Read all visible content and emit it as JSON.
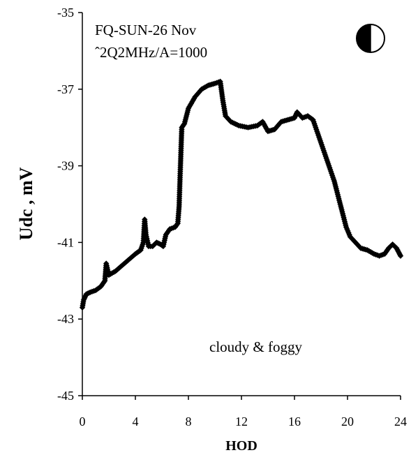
{
  "chart_data": {
    "type": "scatter",
    "annotations": [
      "FQ-SUN-26 Nov",
      "ˆ2Q2MHz/A=1000",
      "cloudy & foggy"
    ],
    "xlabel": "HOD",
    "ylabel": "Udc , mV",
    "xlim": [
      0,
      24
    ],
    "ylim": [
      -45,
      -35
    ],
    "xticks": [
      0,
      4,
      8,
      12,
      16,
      20,
      24
    ],
    "yticks": [
      -35,
      -37,
      -39,
      -41,
      -43,
      -45
    ],
    "grid": false,
    "legend": "none",
    "moon_phase_icon": "half-moon-icon",
    "marker": "diamond",
    "marker_color": "#000000",
    "series": [
      {
        "points": [
          [
            0.0,
            -42.7
          ],
          [
            0.1,
            -42.5
          ],
          [
            0.3,
            -42.35
          ],
          [
            0.6,
            -42.3
          ],
          [
            1.0,
            -42.25
          ],
          [
            1.4,
            -42.15
          ],
          [
            1.7,
            -42.0
          ],
          [
            1.8,
            -41.55
          ],
          [
            1.9,
            -41.7
          ],
          [
            2.0,
            -41.85
          ],
          [
            2.5,
            -41.75
          ],
          [
            3.0,
            -41.6
          ],
          [
            3.5,
            -41.45
          ],
          [
            4.0,
            -41.3
          ],
          [
            4.4,
            -41.2
          ],
          [
            4.6,
            -41.0
          ],
          [
            4.7,
            -40.4
          ],
          [
            4.8,
            -40.8
          ],
          [
            5.0,
            -41.1
          ],
          [
            5.3,
            -41.1
          ],
          [
            5.6,
            -41.0
          ],
          [
            5.9,
            -41.05
          ],
          [
            6.1,
            -41.1
          ],
          [
            6.3,
            -40.8
          ],
          [
            6.6,
            -40.65
          ],
          [
            7.0,
            -40.6
          ],
          [
            7.2,
            -40.5
          ],
          [
            7.3,
            -40.05
          ],
          [
            7.35,
            -39.5
          ],
          [
            7.4,
            -39.0
          ],
          [
            7.45,
            -38.5
          ],
          [
            7.5,
            -38.0
          ],
          [
            7.7,
            -37.9
          ],
          [
            8.0,
            -37.5
          ],
          [
            8.5,
            -37.2
          ],
          [
            9.0,
            -37.0
          ],
          [
            9.5,
            -36.9
          ],
          [
            10.0,
            -36.85
          ],
          [
            10.4,
            -36.8
          ],
          [
            10.6,
            -37.3
          ],
          [
            10.8,
            -37.7
          ],
          [
            11.2,
            -37.85
          ],
          [
            11.8,
            -37.95
          ],
          [
            12.5,
            -38.0
          ],
          [
            13.2,
            -37.95
          ],
          [
            13.6,
            -37.85
          ],
          [
            14.0,
            -38.1
          ],
          [
            14.5,
            -38.05
          ],
          [
            15.0,
            -37.85
          ],
          [
            15.5,
            -37.8
          ],
          [
            16.0,
            -37.75
          ],
          [
            16.2,
            -37.6
          ],
          [
            16.6,
            -37.75
          ],
          [
            17.0,
            -37.7
          ],
          [
            17.4,
            -37.8
          ],
          [
            17.8,
            -38.2
          ],
          [
            18.2,
            -38.6
          ],
          [
            18.6,
            -39.0
          ],
          [
            19.0,
            -39.4
          ],
          [
            19.3,
            -39.8
          ],
          [
            19.6,
            -40.2
          ],
          [
            19.9,
            -40.6
          ],
          [
            20.2,
            -40.85
          ],
          [
            20.6,
            -41.0
          ],
          [
            21.0,
            -41.15
          ],
          [
            21.5,
            -41.2
          ],
          [
            22.0,
            -41.3
          ],
          [
            22.4,
            -41.35
          ],
          [
            22.8,
            -41.3
          ],
          [
            23.1,
            -41.15
          ],
          [
            23.4,
            -41.05
          ],
          [
            23.7,
            -41.15
          ],
          [
            24.0,
            -41.35
          ]
        ]
      }
    ]
  }
}
